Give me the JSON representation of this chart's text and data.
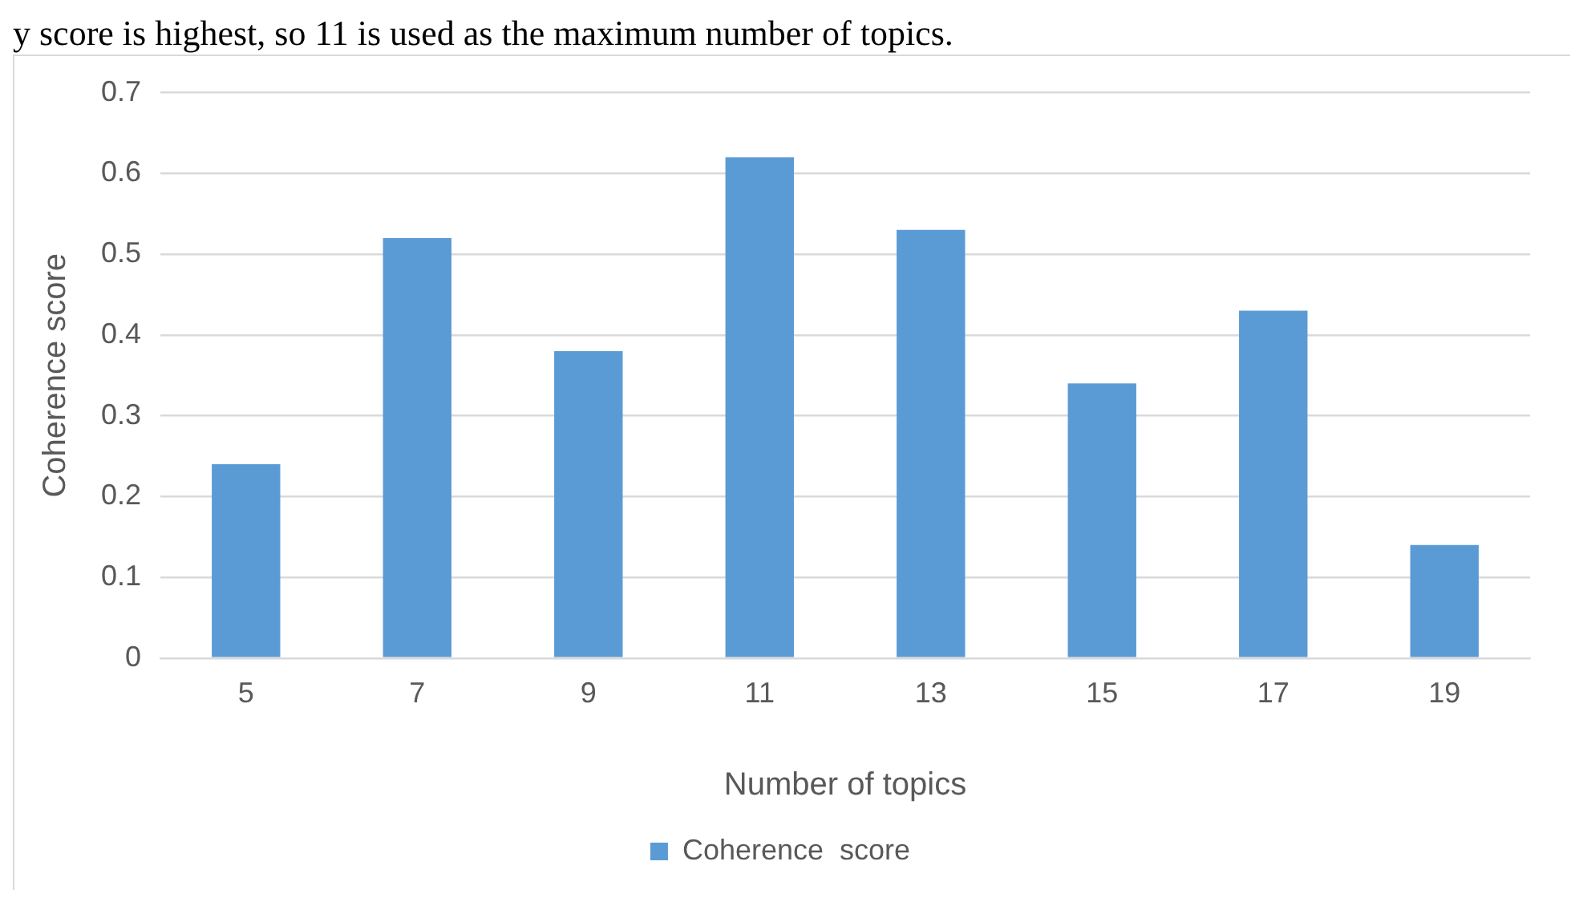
{
  "chart_data": {
    "type": "bar",
    "annotations": [
      "y score is highest, so 11 is used as the maximum number of topics."
    ],
    "categories": [
      "5",
      "7",
      "9",
      "11",
      "13",
      "15",
      "17",
      "19"
    ],
    "series": [
      {
        "name": "Coherence  score",
        "color": "#5b9bd5",
        "values": [
          0.24,
          0.52,
          0.38,
          0.62,
          0.53,
          0.34,
          0.43,
          0.14
        ]
      }
    ],
    "xlabel": "Number of topics",
    "ylabel": "Coherence score",
    "ylim": [
      0,
      0.7
    ],
    "yticks": [
      0,
      0.1,
      0.2,
      0.3,
      0.4,
      0.5,
      0.6,
      0.7
    ],
    "grid": "y",
    "legend": "bottom"
  }
}
